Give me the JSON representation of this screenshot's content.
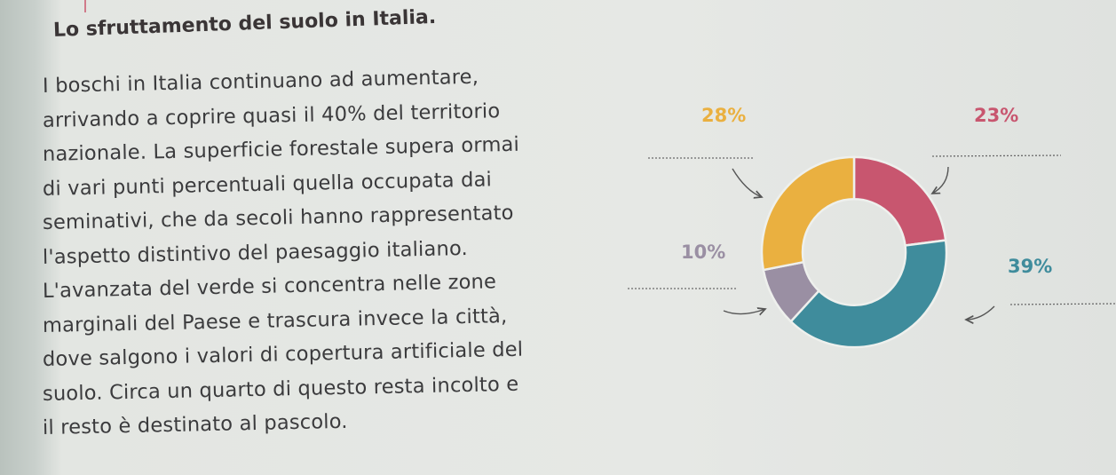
{
  "page": {
    "title": "Lo sfruttamento del suolo in Italia.",
    "paragraph_lines": [
      "I boschi in Italia continuano ad aumentare,",
      "arrivando a coprire quasi il 40% del territorio",
      "nazionale. La superficie forestale supera ormai",
      "di vari punti percentuali quella occupata dai",
      "seminativi, che da secoli hanno rappresentato",
      "l'aspetto distintivo del paesaggio italiano.",
      "L'avanzata del verde si concentra nelle zone",
      "marginali del Paese e trascura invece la città,",
      "dove salgono i valori di copertura artificiale del",
      "suolo. Circa un quarto di questo resta incolto e",
      "il resto è destinato al pascolo."
    ]
  },
  "chart_data": {
    "type": "pie",
    "donut": true,
    "start": "top",
    "direction": "clockwise",
    "slices": [
      {
        "label": "23%",
        "value": 23,
        "color": "#c8566f"
      },
      {
        "label": "39%",
        "value": 39,
        "color": "#3f8c9c"
      },
      {
        "label": "10%",
        "value": 10,
        "color": "#9a8fa3"
      },
      {
        "label": "28%",
        "value": 28,
        "color": "#eab040"
      }
    ],
    "label_blanks": "dotted lines with arrows for student to fill in"
  }
}
